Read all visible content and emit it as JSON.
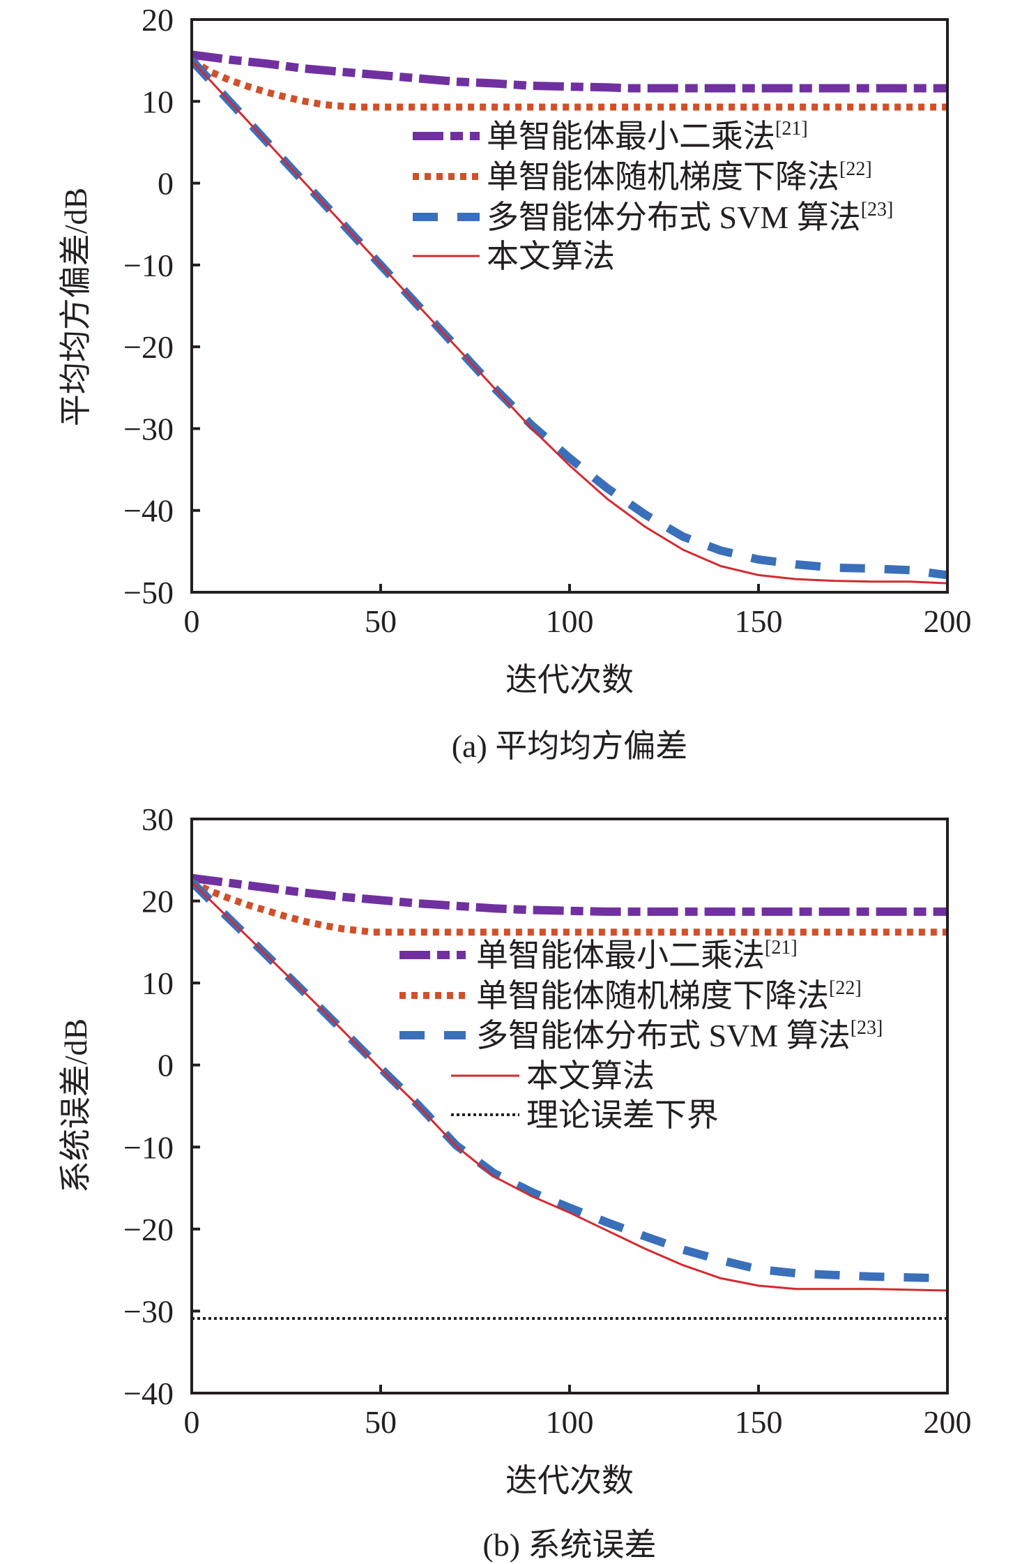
{
  "chart_data": [
    {
      "type": "line",
      "caption": "(a) 平均均方偏差",
      "xlabel": "迭代次数",
      "ylabel": "平均均方偏差/dB",
      "xlim": [
        0,
        200
      ],
      "ylim": [
        -50,
        20
      ],
      "xticks": [
        0,
        50,
        100,
        150,
        200
      ],
      "yticks": [
        -50,
        -40,
        -30,
        -20,
        -10,
        0,
        10,
        20
      ],
      "xtick_labels": [
        "0",
        "50",
        "100",
        "150",
        "200"
      ],
      "ytick_labels": [
        "−50",
        "−40",
        "−30",
        "−20",
        "−10",
        "0",
        "10",
        "20"
      ],
      "grid": false,
      "legend_position": "upper-right",
      "series": [
        {
          "name": "单智能体最小二乘法",
          "ref": "[21]",
          "color": "#7030a0",
          "style": "dash-dot",
          "x": [
            0,
            10,
            20,
            30,
            40,
            50,
            60,
            70,
            80,
            90,
            100,
            110,
            116,
            130,
            150,
            170,
            200
          ],
          "y": [
            15.7,
            15.1,
            14.6,
            14.0,
            13.6,
            13.2,
            12.8,
            12.4,
            12.2,
            11.9,
            11.8,
            11.7,
            11.6,
            11.6,
            11.6,
            11.6,
            11.6
          ]
        },
        {
          "name": "单智能体随机梯度下降法",
          "ref": "[22]",
          "color": "#d0502a",
          "style": "dotted",
          "x": [
            0,
            5,
            10,
            15,
            20,
            25,
            30,
            35,
            40,
            44,
            50,
            100,
            150,
            200
          ],
          "y": [
            15.0,
            13.6,
            12.6,
            11.8,
            11.1,
            10.5,
            10.0,
            9.6,
            9.4,
            9.3,
            9.3,
            9.3,
            9.3,
            9.3
          ]
        },
        {
          "name": "多智能体分布式 SVM 算法",
          "ref": "[23]",
          "color": "#3a6fba",
          "style": "dashed",
          "x": [
            0,
            10,
            20,
            30,
            40,
            50,
            60,
            70,
            80,
            90,
            100,
            110,
            120,
            130,
            140,
            150,
            160,
            170,
            180,
            190,
            200
          ],
          "y": [
            15.0,
            10.0,
            5.0,
            0.0,
            -5.0,
            -10.0,
            -15.0,
            -20.0,
            -25.0,
            -29.6,
            -33.6,
            -37.3,
            -40.5,
            -43.2,
            -44.9,
            -46.0,
            -46.6,
            -47.0,
            -47.1,
            -47.3,
            -47.9
          ]
        },
        {
          "name": "本文算法",
          "ref": "",
          "color": "#d42a2f",
          "style": "solid",
          "x": [
            0,
            10,
            20,
            30,
            40,
            50,
            60,
            70,
            80,
            90,
            100,
            110,
            120,
            130,
            140,
            150,
            160,
            170,
            180,
            190,
            200
          ],
          "y": [
            15.0,
            10.0,
            5.0,
            0.0,
            -5.0,
            -10.0,
            -15.0,
            -20.0,
            -25.0,
            -30.0,
            -34.5,
            -38.6,
            -42.0,
            -44.8,
            -46.8,
            -47.9,
            -48.4,
            -48.6,
            -48.7,
            -48.7,
            -48.9
          ]
        }
      ]
    },
    {
      "type": "line",
      "caption": "(b) 系统误差",
      "xlabel": "迭代次数",
      "ylabel": "系统误差/dB",
      "xlim": [
        0,
        200
      ],
      "ylim": [
        -40,
        30
      ],
      "xticks": [
        0,
        50,
        100,
        150,
        200
      ],
      "yticks": [
        -40,
        -30,
        -20,
        -10,
        0,
        10,
        20,
        30
      ],
      "xtick_labels": [
        "0",
        "50",
        "100",
        "150",
        "200"
      ],
      "ytick_labels": [
        "−40",
        "−30",
        "−20",
        "−10",
        "0",
        "10",
        "20",
        "30"
      ],
      "grid": false,
      "legend_position": "upper-right",
      "series": [
        {
          "name": "单智能体最小二乘法",
          "ref": "[21]",
          "color": "#7030a0",
          "style": "dash-dot",
          "x": [
            0,
            10,
            20,
            30,
            40,
            50,
            60,
            70,
            80,
            90,
            100,
            110,
            120,
            150,
            200
          ],
          "y": [
            22.8,
            22.2,
            21.6,
            21.0,
            20.5,
            20.1,
            19.7,
            19.4,
            19.1,
            18.9,
            18.8,
            18.7,
            18.7,
            18.7,
            18.7
          ]
        },
        {
          "name": "单智能体随机梯度下降法",
          "ref": "[22]",
          "color": "#d0502a",
          "style": "dotted",
          "x": [
            0,
            5,
            10,
            15,
            20,
            25,
            30,
            35,
            40,
            48,
            60,
            100,
            150,
            200
          ],
          "y": [
            22.3,
            21.2,
            20.3,
            19.5,
            18.8,
            18.1,
            17.5,
            17.0,
            16.6,
            16.2,
            16.2,
            16.2,
            16.2,
            16.2
          ]
        },
        {
          "name": "多智能体分布式 SVM 算法",
          "ref": "[23]",
          "color": "#3a6fba",
          "style": "dashed",
          "x": [
            0,
            10,
            20,
            30,
            40,
            50,
            60,
            70,
            80,
            90,
            100,
            110,
            120,
            130,
            140,
            150,
            160,
            170,
            180,
            190,
            200
          ],
          "y": [
            22.3,
            17.8,
            13.3,
            8.8,
            4.2,
            -0.4,
            -4.9,
            -9.8,
            -13.2,
            -15.5,
            -17.4,
            -19.2,
            -20.9,
            -22.5,
            -23.8,
            -24.9,
            -25.4,
            -25.6,
            -25.8,
            -25.9,
            -26.0
          ]
        },
        {
          "name": "本文算法",
          "ref": "",
          "color": "#d42a2f",
          "style": "solid",
          "x": [
            0,
            10,
            20,
            30,
            40,
            50,
            60,
            70,
            80,
            90,
            100,
            110,
            120,
            130,
            140,
            150,
            160,
            170,
            180,
            190,
            200
          ],
          "y": [
            22.3,
            17.8,
            13.3,
            8.8,
            4.2,
            -0.5,
            -5.0,
            -9.9,
            -13.6,
            -16.0,
            -18.0,
            -20.2,
            -22.4,
            -24.4,
            -26.0,
            -26.9,
            -27.3,
            -27.3,
            -27.3,
            -27.4,
            -27.5
          ]
        },
        {
          "name": "理论误差下界",
          "ref": "",
          "color": "#231f20",
          "style": "fine-dotted",
          "x": [
            0,
            200
          ],
          "y": [
            -30.9,
            -30.9
          ]
        }
      ]
    }
  ]
}
